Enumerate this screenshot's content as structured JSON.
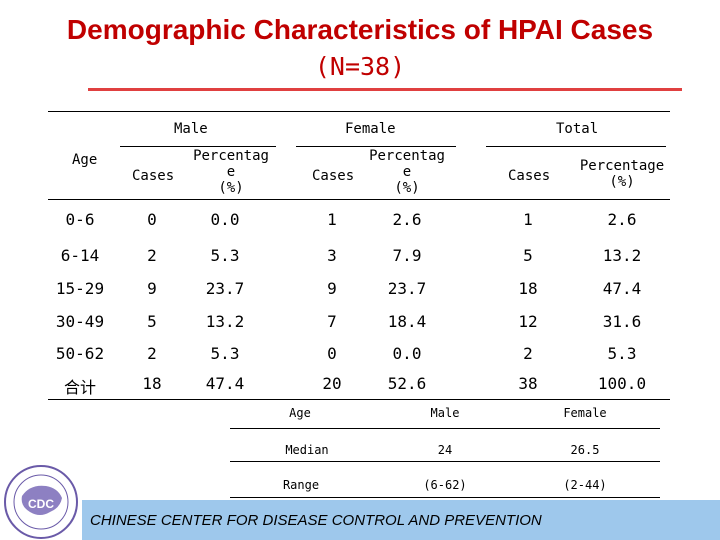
{
  "title": "Demographic Characteristics of HPAI Cases",
  "subtitle": "(N=38)",
  "table": {
    "groups": {
      "male": "Male",
      "female": "Female",
      "total": "Total"
    },
    "age_header": "Age",
    "sub": {
      "cases": "Cases",
      "pct_line1": "Percentag",
      "pct_line2": "e",
      "pct_line3": "(%)",
      "total_pct_line1": "Percentage",
      "total_pct_line2": "(%)"
    },
    "rows": [
      [
        "0-6",
        "0",
        "0.0",
        "1",
        "2.6",
        "1",
        "2.6"
      ],
      [
        "6-14",
        "2",
        "5.3",
        "3",
        "7.9",
        "5",
        "13.2"
      ],
      [
        "15-29",
        "9",
        "23.7",
        "9",
        "23.7",
        "18",
        "47.4"
      ],
      [
        "30-49",
        "5",
        "13.2",
        "7",
        "18.4",
        "12",
        "31.6"
      ],
      [
        "50-62",
        "2",
        "5.3",
        "0",
        "0.0",
        "2",
        "5.3"
      ],
      [
        "合计",
        "18",
        "47.4",
        "20",
        "52.6",
        "38",
        "100.0"
      ]
    ]
  },
  "age_table": {
    "header": {
      "age": "Age",
      "male": "Male",
      "female": "Female"
    },
    "rows": [
      [
        "Median",
        "24",
        "26.5"
      ],
      [
        "Range",
        "(6-62)",
        "(2-44)"
      ]
    ]
  },
  "footer": "CHINESE CENTER FOR DISEASE CONTROL AND PREVENTION",
  "logo": {
    "text": "CDC"
  },
  "colors": {
    "title": "#c00000",
    "footer_bar": "#9ec8ec",
    "rule": "#e04040"
  }
}
